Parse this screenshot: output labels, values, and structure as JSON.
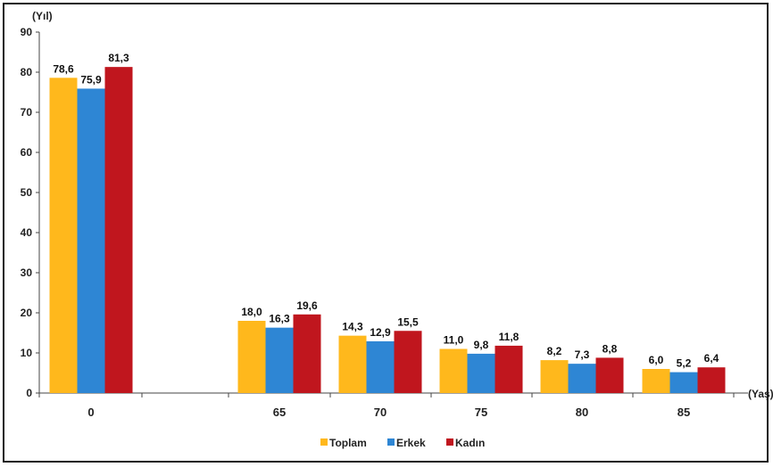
{
  "chart_data": {
    "type": "bar",
    "ylabel": "(Yıl)",
    "xlabel": "(Yaş)",
    "ylim": [
      0,
      90
    ],
    "yticks": [
      0,
      10,
      20,
      30,
      40,
      50,
      60,
      70,
      80,
      90
    ],
    "categories": [
      "0",
      "65",
      "70",
      "75",
      "80",
      "85"
    ],
    "series": [
      {
        "name": "Toplam",
        "color": "#FFB81C",
        "values": [
          78.6,
          18.0,
          14.3,
          11.0,
          8.2,
          6.0
        ],
        "labels": [
          "78,6",
          "18,0",
          "14,3",
          "11,0",
          "8,2",
          "6,0"
        ]
      },
      {
        "name": "Erkek",
        "color": "#2E86D4",
        "values": [
          75.9,
          16.3,
          12.9,
          9.8,
          7.3,
          5.2
        ],
        "labels": [
          "75,9",
          "16,3",
          "12,9",
          "9,8",
          "7,3",
          "5,2"
        ]
      },
      {
        "name": "Kadın",
        "color": "#C0161E",
        "values": [
          81.3,
          19.6,
          15.5,
          11.8,
          8.8,
          6.4
        ],
        "labels": [
          "81,3",
          "19,6",
          "15,5",
          "11,8",
          "8,8",
          "6,4"
        ]
      }
    ],
    "legend_position": "bottom",
    "grid": false
  }
}
